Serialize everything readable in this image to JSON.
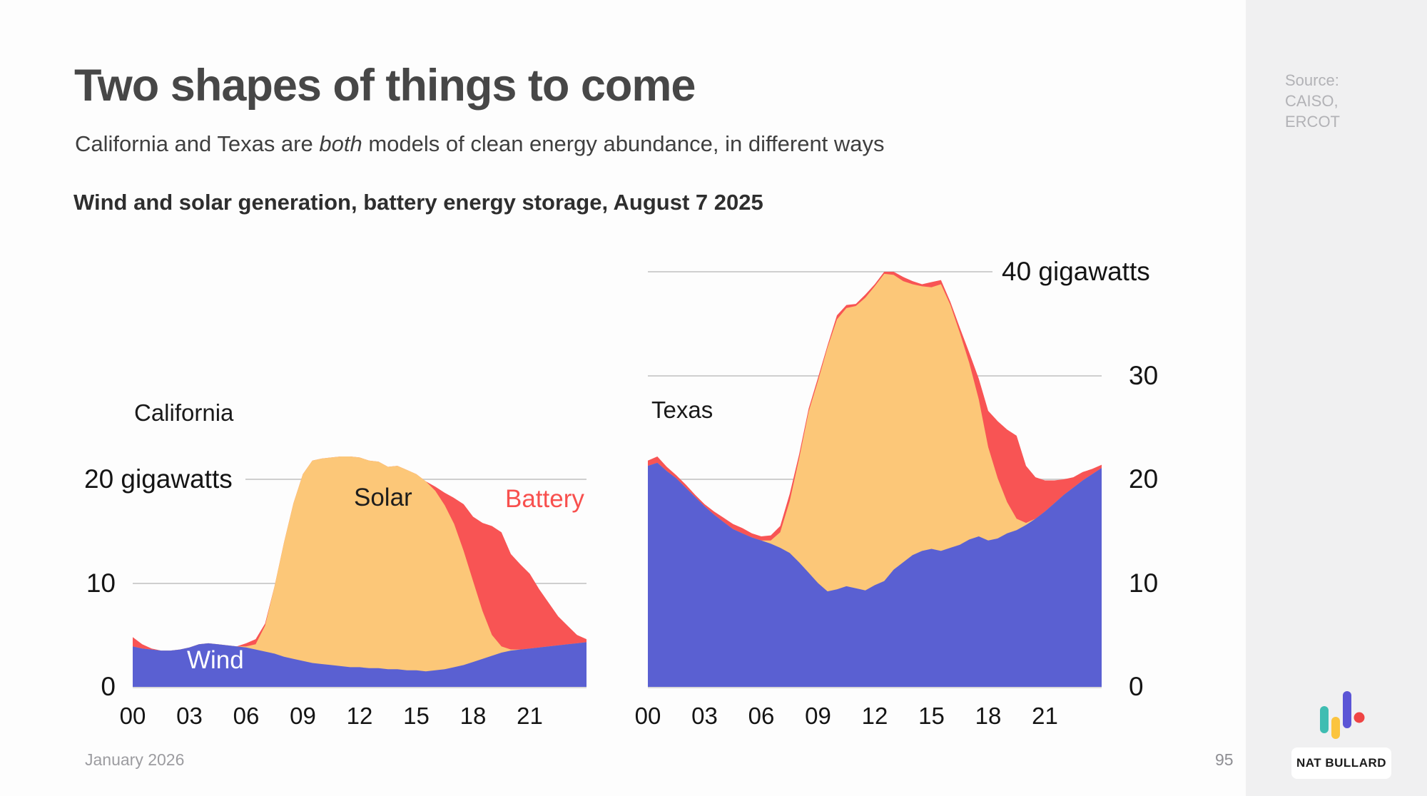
{
  "slide": {
    "title": "Two shapes of things to come",
    "subtitle_pre": "California and Texas are ",
    "subtitle_em": "both",
    "subtitle_post": " models of clean energy abundance, in different ways",
    "heading": "Wind and solar generation, battery energy storage, August 7 2025",
    "source_line1": "Source:",
    "source_line2": "CAISO,",
    "source_line3": "ERCOT",
    "footer_date": "January 2026",
    "page_number": "95",
    "logo_wordmark": "NAT BULLARD"
  },
  "colors": {
    "wind": "#5a60d2",
    "solar": "#fcc778",
    "battery": "#f85454",
    "gridline": "#cfcfcf",
    "page_bg": "#fdfdfd",
    "panel_bg": "#f0f0f1",
    "title_text": "#474747",
    "muted_text": "#9c9ca0",
    "source_text": "#b2b2b6",
    "battery_label_text": "#f8504e",
    "logo_teal": "#3fbdb2",
    "logo_yellow": "#fbc43e",
    "logo_indigo": "#5b55d6",
    "logo_red": "#ef4444"
  },
  "chart_data": [
    {
      "type": "area",
      "stacked": true,
      "region_label": "California",
      "x_unit": "hour of day",
      "x_start": 0,
      "x_step_hours": 0.5,
      "x_end": 24,
      "ylim": [
        0,
        25
      ],
      "grid": "on",
      "y_unit": "gigawatts",
      "y_labels": [
        {
          "text": "0",
          "gw": 0
        },
        {
          "text": "10",
          "gw": 10
        },
        {
          "text": "20 gigawatts",
          "gw": 20
        }
      ],
      "x_ticks": [
        {
          "text": "00",
          "hour": 0
        },
        {
          "text": "03",
          "hour": 3
        },
        {
          "text": "06",
          "hour": 6
        },
        {
          "text": "09",
          "hour": 9
        },
        {
          "text": "12",
          "hour": 12
        },
        {
          "text": "15",
          "hour": 15
        },
        {
          "text": "18",
          "hour": 18
        },
        {
          "text": "21",
          "hour": 21
        }
      ],
      "series": [
        {
          "name": "Wind",
          "color": "#5a60d2",
          "values": [
            3.9,
            3.7,
            3.6,
            3.5,
            3.5,
            3.6,
            3.8,
            4.1,
            4.2,
            4.1,
            4.0,
            3.9,
            3.8,
            3.6,
            3.4,
            3.2,
            2.9,
            2.7,
            2.5,
            2.3,
            2.2,
            2.1,
            2.0,
            1.9,
            1.9,
            1.8,
            1.8,
            1.7,
            1.7,
            1.6,
            1.6,
            1.5,
            1.6,
            1.7,
            1.9,
            2.1,
            2.4,
            2.7,
            3.0,
            3.3,
            3.5,
            3.6,
            3.7,
            3.8,
            3.9,
            4.0,
            4.1,
            4.2,
            4.3
          ]
        },
        {
          "name": "Solar",
          "color": "#fcc778",
          "values": [
            0,
            0,
            0,
            0,
            0,
            0,
            0,
            0,
            0,
            0,
            0,
            0,
            0.1,
            0.5,
            2.5,
            6.5,
            11,
            15,
            18,
            19.5,
            19.8,
            20,
            20.2,
            20.3,
            20.2,
            20,
            19.9,
            19.5,
            19.6,
            19.3,
            18.9,
            18.3,
            17.3,
            15.8,
            13.8,
            11,
            7.8,
            4.6,
            2,
            0.6,
            0.1,
            0,
            0,
            0,
            0,
            0,
            0,
            0,
            0
          ]
        },
        {
          "name": "Battery",
          "color": "#f85454",
          "values": [
            0.9,
            0.4,
            0.1,
            0,
            0,
            0,
            0,
            0,
            0,
            0,
            0,
            0,
            0.3,
            0.5,
            0.2,
            0,
            0,
            0,
            0,
            0,
            0,
            0,
            0,
            0,
            0,
            0,
            0,
            0,
            0,
            0,
            0,
            0,
            0.4,
            1.2,
            2.5,
            4.5,
            6.2,
            8.5,
            10.5,
            11,
            9.2,
            8.2,
            7.2,
            5.6,
            4.2,
            2.8,
            1.8,
            0.8,
            0.3
          ]
        }
      ]
    },
    {
      "type": "area",
      "stacked": true,
      "region_label": "Texas",
      "x_unit": "hour of day",
      "x_start": 0,
      "x_step_hours": 0.5,
      "x_end": 24,
      "ylim": [
        0,
        41
      ],
      "grid": "on",
      "y_unit": "gigawatts",
      "y_labels": [
        {
          "text": "0",
          "gw": 0
        },
        {
          "text": "10",
          "gw": 10
        },
        {
          "text": "20",
          "gw": 20
        },
        {
          "text": "30",
          "gw": 30
        },
        {
          "text": "40 gigawatts",
          "gw": 40
        }
      ],
      "x_ticks": [
        {
          "text": "00",
          "hour": 0
        },
        {
          "text": "03",
          "hour": 3
        },
        {
          "text": "06",
          "hour": 6
        },
        {
          "text": "09",
          "hour": 9
        },
        {
          "text": "12",
          "hour": 12
        },
        {
          "text": "15",
          "hour": 15
        },
        {
          "text": "18",
          "hour": 18
        },
        {
          "text": "21",
          "hour": 21
        }
      ],
      "series": [
        {
          "name": "Wind",
          "color": "#5a60d2",
          "values": [
            21.3,
            21.6,
            20.8,
            20.1,
            19.2,
            18.3,
            17.4,
            16.6,
            15.9,
            15.2,
            14.8,
            14.4,
            14.1,
            13.8,
            13.4,
            12.9,
            12.0,
            11.0,
            10.0,
            9.2,
            9.4,
            9.7,
            9.5,
            9.3,
            9.8,
            10.2,
            11.3,
            12.0,
            12.7,
            13.1,
            13.3,
            13.1,
            13.4,
            13.7,
            14.2,
            14.5,
            14.1,
            14.3,
            14.8,
            15.1,
            15.6,
            16.2,
            16.9,
            17.7,
            18.5,
            19.2,
            19.9,
            20.5,
            21.1
          ]
        },
        {
          "name": "Solar",
          "color": "#fcc778",
          "values": [
            0,
            0,
            0,
            0,
            0,
            0,
            0,
            0,
            0,
            0,
            0,
            0,
            0,
            0.3,
            1.5,
            5.0,
            10.0,
            15.5,
            19.5,
            23.5,
            26.0,
            26.8,
            27.2,
            28.2,
            28.8,
            29.6,
            28.4,
            27.1,
            26.1,
            25.5,
            25.2,
            25.7,
            23.4,
            20.4,
            17.0,
            13.2,
            9.0,
            5.8,
            3.0,
            1.1,
            0.2,
            0,
            0,
            0,
            0,
            0,
            0,
            0,
            0
          ]
        },
        {
          "name": "Battery",
          "color": "#f85454",
          "values": [
            0.5,
            0.6,
            0.4,
            0.3,
            0.3,
            0.2,
            0.2,
            0.3,
            0.4,
            0.5,
            0.5,
            0.4,
            0.4,
            0.5,
            0.6,
            0.7,
            0.4,
            0.3,
            0.3,
            0.2,
            0.4,
            0.3,
            0.2,
            0.3,
            0.2,
            0.2,
            0.3,
            0.4,
            0.3,
            0.2,
            0.5,
            0.4,
            0.3,
            0.5,
            1.0,
            2.0,
            3.5,
            5.5,
            7.0,
            8.0,
            5.5,
            4.0,
            3.0,
            2.2,
            1.5,
            1.0,
            0.8,
            0.5,
            0.3
          ]
        }
      ]
    }
  ]
}
